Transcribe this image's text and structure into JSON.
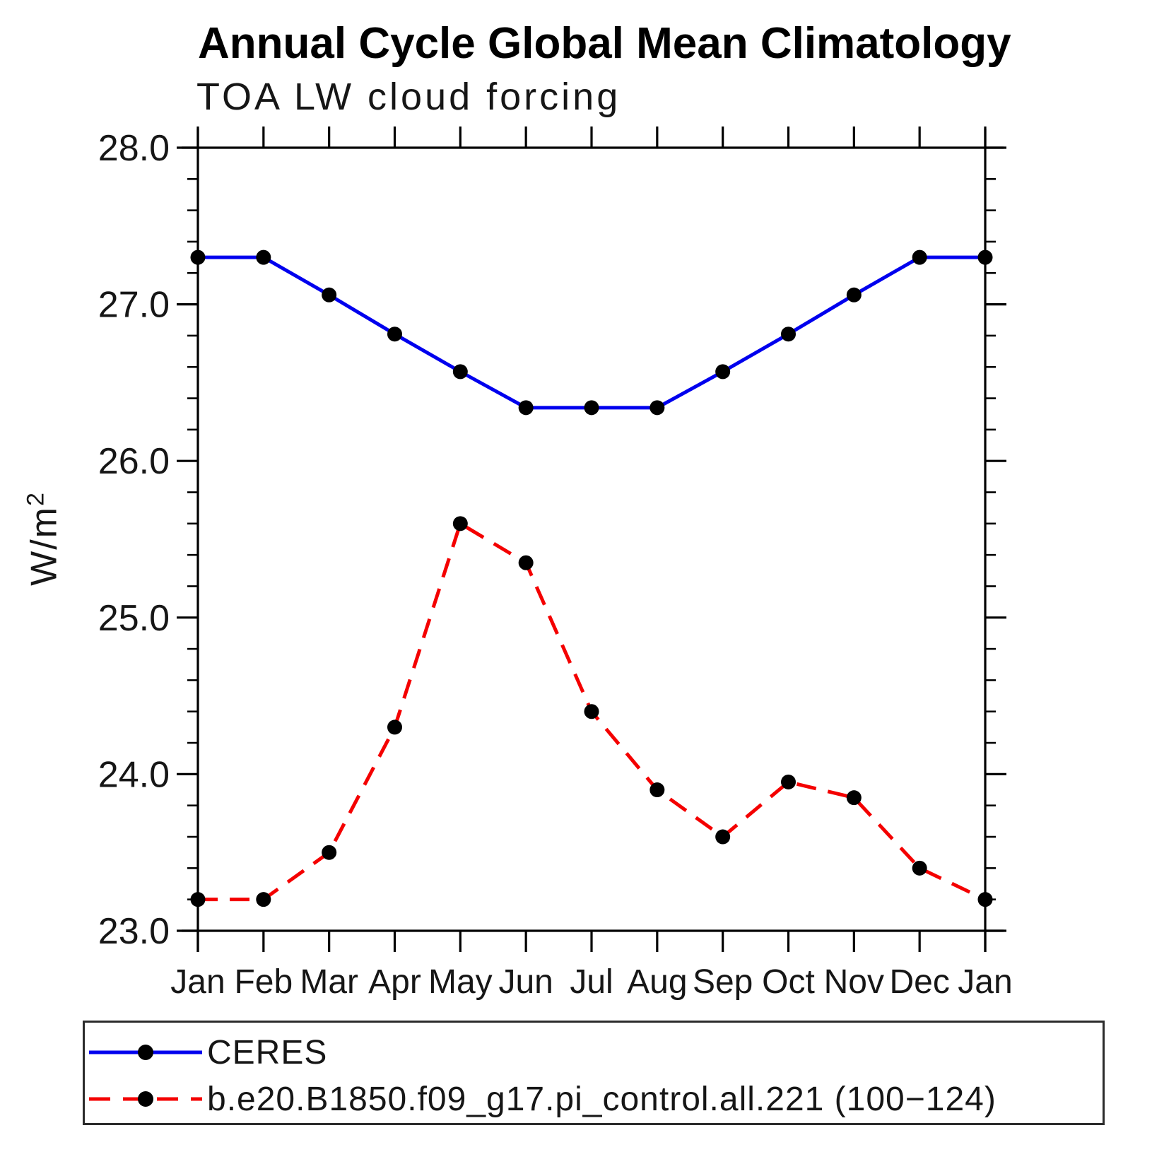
{
  "header": {
    "title": "Annual Cycle Global Mean Climatology",
    "subtitle": "TOA LW cloud forcing"
  },
  "axes": {
    "y": {
      "label_base": "W/m",
      "label_sup": "2"
    }
  },
  "chart_data": {
    "type": "line",
    "title": "Annual Cycle Global Mean Climatology",
    "subtitle": "TOA LW cloud forcing",
    "ylabel": "W/m²",
    "xlabel": "",
    "categories": [
      "Jan",
      "Feb",
      "Mar",
      "Apr",
      "May",
      "Jun",
      "Jul",
      "Aug",
      "Sep",
      "Oct",
      "Nov",
      "Dec",
      "Jan"
    ],
    "ylim": [
      23.0,
      28.0
    ],
    "yticks": [
      23.0,
      24.0,
      25.0,
      26.0,
      27.0,
      28.0
    ],
    "ytick_labels": [
      "23.0",
      "24.0",
      "25.0",
      "26.0",
      "27.0",
      "28.0"
    ],
    "yminor_step": 0.2,
    "grid": false,
    "legend_position": "bottom-box",
    "marker_color": "#000000",
    "axis_color": "#000000",
    "series": [
      {
        "name": "CERES",
        "color": "#0000ee",
        "line_style": "solid",
        "values": [
          27.3,
          27.3,
          27.06,
          26.81,
          26.57,
          26.34,
          26.34,
          26.34,
          26.57,
          26.81,
          27.06,
          27.3,
          27.3
        ]
      },
      {
        "name": "b.e20.B1850.f09_g17.pi_control.all.221 (100−124)",
        "color": "#f40000",
        "line_style": "dashed",
        "values": [
          23.2,
          23.2,
          23.5,
          24.3,
          25.6,
          25.35,
          24.4,
          23.9,
          23.6,
          23.95,
          23.85,
          23.4,
          23.2
        ]
      }
    ]
  }
}
